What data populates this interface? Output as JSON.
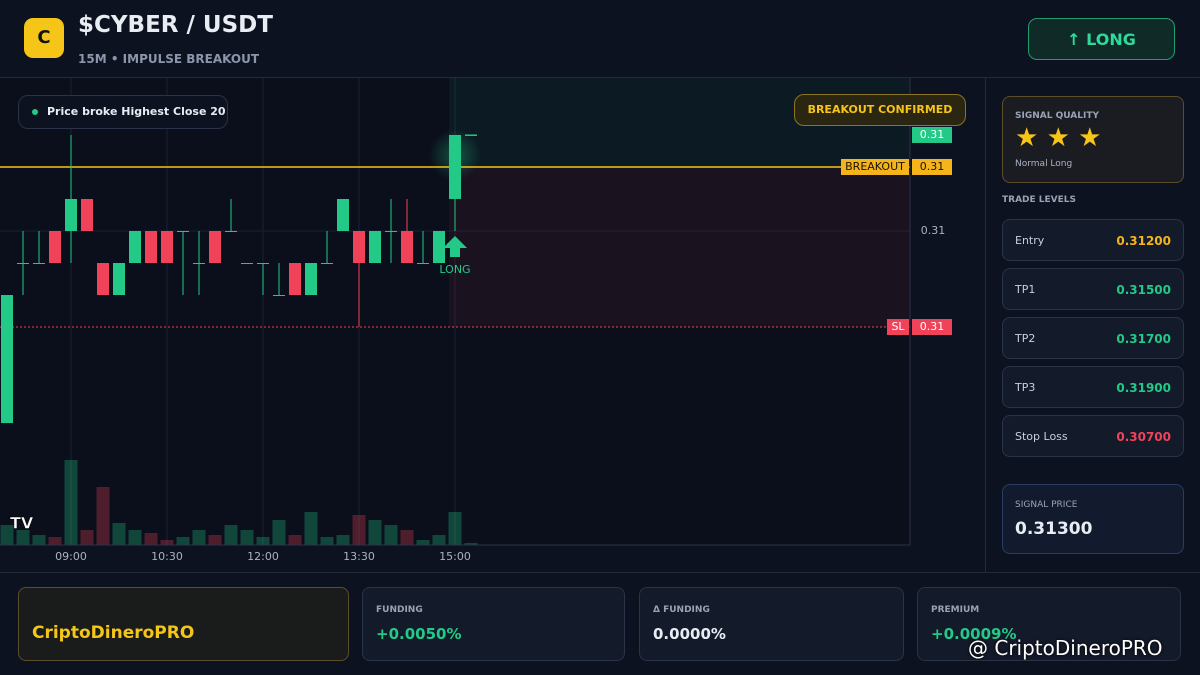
{
  "header": {
    "logo": "C",
    "title": "$CYBER / USDT",
    "subtitle": "15M • IMPULSE BREAKOUT",
    "button": "↑ LONG"
  },
  "chart_data": {
    "type": "candlestick",
    "categories": [
      null,
      null,
      null,
      null,
      "09:00",
      null,
      null,
      null,
      null,
      null,
      "10:30",
      null,
      null,
      null,
      null,
      null,
      "12:00",
      null,
      null,
      null,
      null,
      null,
      "13:30",
      null,
      null,
      null,
      null,
      null,
      "15:00",
      null
    ],
    "open": [
      0.304,
      0.309,
      0.309,
      0.31,
      0.31,
      0.311,
      0.309,
      0.308,
      0.309,
      0.31,
      0.31,
      0.31,
      0.309,
      0.31,
      0.31,
      0.309,
      0.309,
      0.308,
      0.309,
      0.308,
      0.309,
      0.31,
      0.31,
      0.309,
      0.31,
      0.31,
      0.309,
      0.309,
      0.311,
      0.313
    ],
    "high": [
      0.308,
      0.31,
      0.31,
      0.31,
      0.313,
      0.311,
      0.309,
      0.309,
      0.31,
      0.31,
      0.31,
      0.31,
      0.31,
      0.31,
      0.311,
      0.309,
      0.309,
      0.309,
      0.309,
      0.309,
      0.31,
      0.311,
      0.31,
      0.31,
      0.311,
      0.311,
      0.31,
      0.31,
      0.313,
      0.313
    ],
    "low": [
      0.304,
      0.308,
      0.309,
      0.309,
      0.309,
      0.31,
      0.308,
      0.308,
      0.309,
      0.309,
      0.309,
      0.308,
      0.308,
      0.309,
      0.31,
      0.309,
      0.308,
      0.308,
      0.308,
      0.308,
      0.309,
      0.31,
      0.307,
      0.309,
      0.309,
      0.309,
      0.309,
      0.309,
      0.31,
      0.313
    ],
    "close": [
      0.308,
      0.309,
      0.309,
      0.309,
      0.311,
      0.31,
      0.308,
      0.309,
      0.31,
      0.309,
      0.309,
      0.31,
      0.309,
      0.309,
      0.31,
      0.309,
      0.309,
      0.308,
      0.308,
      0.309,
      0.309,
      0.311,
      0.309,
      0.31,
      0.31,
      0.309,
      0.309,
      0.31,
      0.313,
      0.313
    ],
    "volume": [
      20,
      15,
      10,
      8,
      85,
      15,
      58,
      22,
      15,
      12,
      5,
      8,
      15,
      10,
      20,
      15,
      8,
      25,
      10,
      33,
      8,
      10,
      30,
      25,
      20,
      15,
      5,
      10,
      33,
      2
    ],
    "up_color": "#22c987",
    "down_color": "#f0435a",
    "ylim": [
      0.30019,
      0.31478
    ],
    "yticks": [
      0.31
    ],
    "vlim": [
      0,
      100
    ],
    "signal_level": {
      "value": 0.313,
      "label": "0.31"
    },
    "breakout_level": {
      "name": "BREAKOUT",
      "value": 0.312,
      "label": "0.31"
    },
    "sl_level": {
      "name": "SL",
      "value": 0.307,
      "label": "0.31"
    },
    "annotations": {
      "breakout_note": "Price broke Highest Close 20",
      "confirmed": "BREAKOUT CONFIRMED",
      "long_marker": "LONG"
    }
  },
  "side": {
    "quality_title": "SIGNAL QUALITY",
    "quality_stars": "★ ★ ★",
    "quality_text": "Normal Long",
    "levels_title": "TRADE LEVELS",
    "levels": [
      {
        "label": "Entry",
        "value": "0.31200"
      },
      {
        "label": "TP1",
        "value": "0.31500"
      },
      {
        "label": "TP2",
        "value": "0.31700"
      },
      {
        "label": "TP3",
        "value": "0.31900"
      },
      {
        "label": "Stop Loss",
        "value": "0.30700"
      }
    ],
    "signal_price_title": "SIGNAL PRICE",
    "signal_price": "0.31300"
  },
  "footer": {
    "brand": "CriptoDineroPRO",
    "cards": [
      {
        "label": "FUNDING",
        "value": "+0.0050%"
      },
      {
        "label": "Δ FUNDING",
        "value": "0.0000%"
      },
      {
        "label": "PREMIUM",
        "value": "+0.0009%"
      }
    ],
    "watermark": "@ CriptoDineroPRO"
  }
}
